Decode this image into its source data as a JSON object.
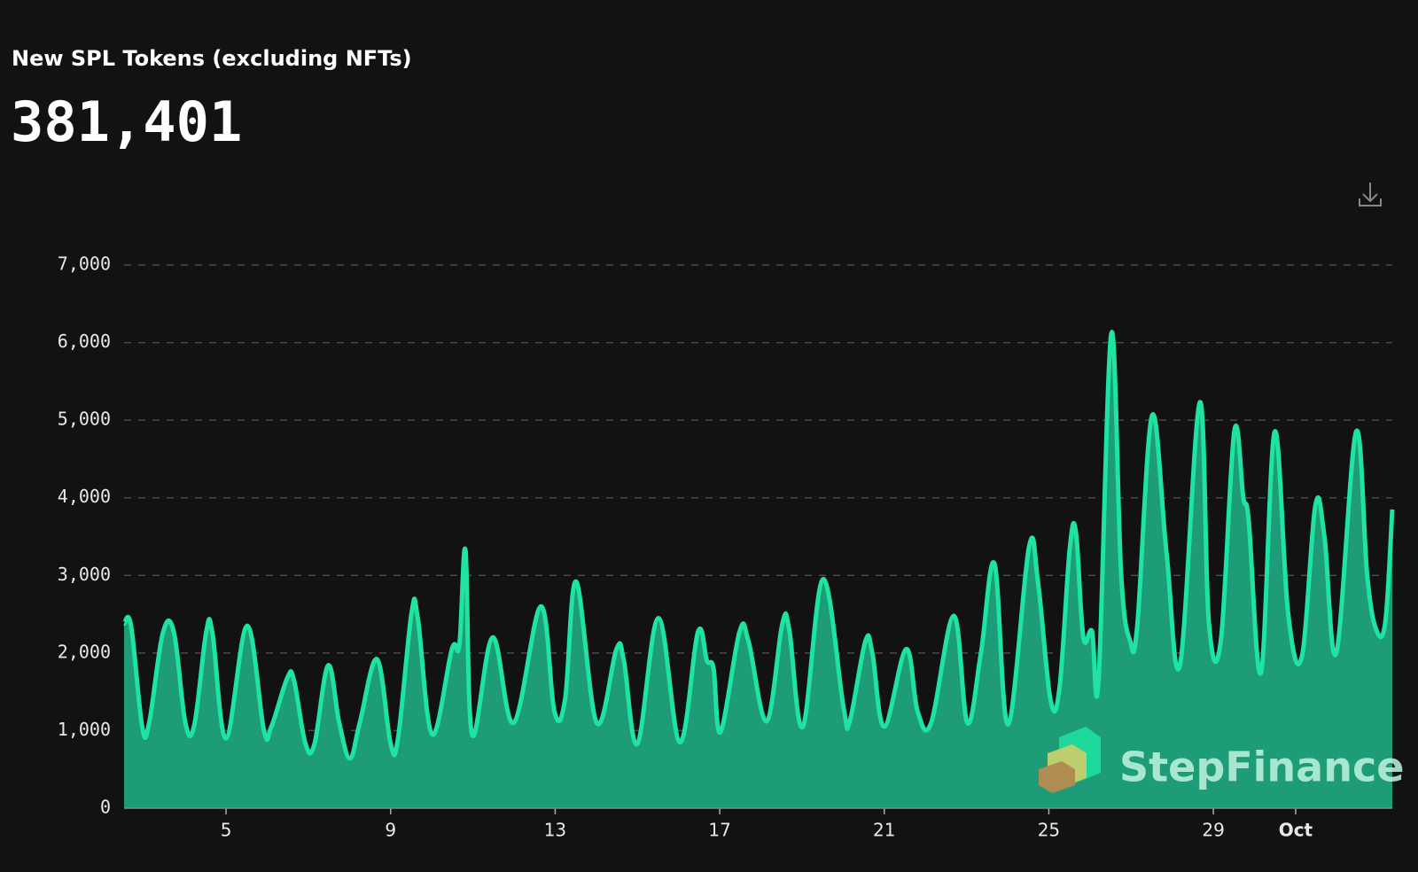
{
  "chart_data": {
    "type": "area",
    "title": "New SPL Tokens (excluding NFTs)",
    "headline_value": "381,401",
    "watermark": "StepFinance",
    "line_color": "#1ee3a3",
    "fill_color": "#1e9c78",
    "grid": true,
    "xlim": [
      2.52,
      33.35
    ],
    "ylim": [
      0,
      7000
    ],
    "yticks": [
      0,
      {
        "value": 1000,
        "label": "1,000"
      },
      {
        "value": 2000,
        "label": "2,000"
      },
      {
        "value": 3000,
        "label": "3,000"
      },
      {
        "value": 4000,
        "label": "4,000"
      },
      {
        "value": 5000,
        "label": "5,000"
      },
      {
        "value": 6000,
        "label": "6,000"
      },
      {
        "value": 7000,
        "label": "7,000"
      }
    ],
    "xticks": [
      5,
      9,
      13,
      17,
      21,
      25,
      29,
      {
        "value": 31,
        "label": "Oct"
      }
    ],
    "x": [
      2.52,
      2.69,
      2.96,
      3.13,
      3.46,
      3.73,
      4.01,
      4.23,
      4.52,
      4.67,
      5,
      5.51,
      5.92,
      6.1,
      6.49,
      6.65,
      6.93,
      7.15,
      7.48,
      7.75,
      8.01,
      8.25,
      8.67,
      9,
      9.18,
      9.51,
      9.66,
      10.01,
      10.49,
      10.67,
      10.82,
      10.98,
      11.48,
      11.99,
      12.65,
      12.98,
      13.24,
      13.51,
      14.01,
      14.49,
      14.67,
      15,
      15.51,
      16.03,
      16.47,
      16.69,
      16.85,
      17.02,
      17.48,
      17.7,
      18.14,
      18.52,
      18.69,
      19.02,
      19.51,
      20.01,
      20.16,
      20.54,
      20.71,
      21,
      21.53,
      21.81,
      22.14,
      22.69,
      23.02,
      23.35,
      23.68,
      24.01,
      24.52,
      24.74,
      25.04,
      25.26,
      25.51,
      25.66,
      25.84,
      26.05,
      26.21,
      26.52,
      26.76,
      26.98,
      27.15,
      27.51,
      27.86,
      28.19,
      28.67,
      28.89,
      29.18,
      29.51,
      29.73,
      29.86,
      30.16,
      30.49,
      30.82,
      31.15,
      31.48,
      31.7,
      31.99,
      32.47,
      32.74,
      32.96,
      33.18,
      33.35
    ],
    "values": [
      2380,
      2350,
      1050,
      1100,
      2250,
      2270,
      1100,
      1080,
      2280,
      2250,
      900,
      2350,
      1000,
      1050,
      1680,
      1650,
      830,
      830,
      1840,
      1100,
      640,
      1100,
      1920,
      830,
      900,
      2520,
      2450,
      950,
      2050,
      2100,
      3320,
      950,
      2200,
      1100,
      2600,
      1250,
      1400,
      2920,
      1100,
      2050,
      1900,
      830,
      2450,
      850,
      2270,
      1900,
      1800,
      980,
      2270,
      2150,
      1120,
      2370,
      2300,
      1050,
      2950,
      1300,
      1120,
      2150,
      2000,
      1050,
      2050,
      1250,
      1100,
      2480,
      1100,
      2000,
      3150,
      1080,
      3370,
      2900,
      1400,
      1550,
      3350,
      3550,
      2200,
      2280,
      1650,
      6120,
      3000,
      2150,
      2350,
      5060,
      3300,
      1850,
      5230,
      2400,
      2150,
      4860,
      4000,
      3700,
      1750,
      4850,
      2500,
      1950,
      3900,
      3500,
      2000,
      4850,
      3000,
      2300,
      2400,
      3850
    ]
  }
}
